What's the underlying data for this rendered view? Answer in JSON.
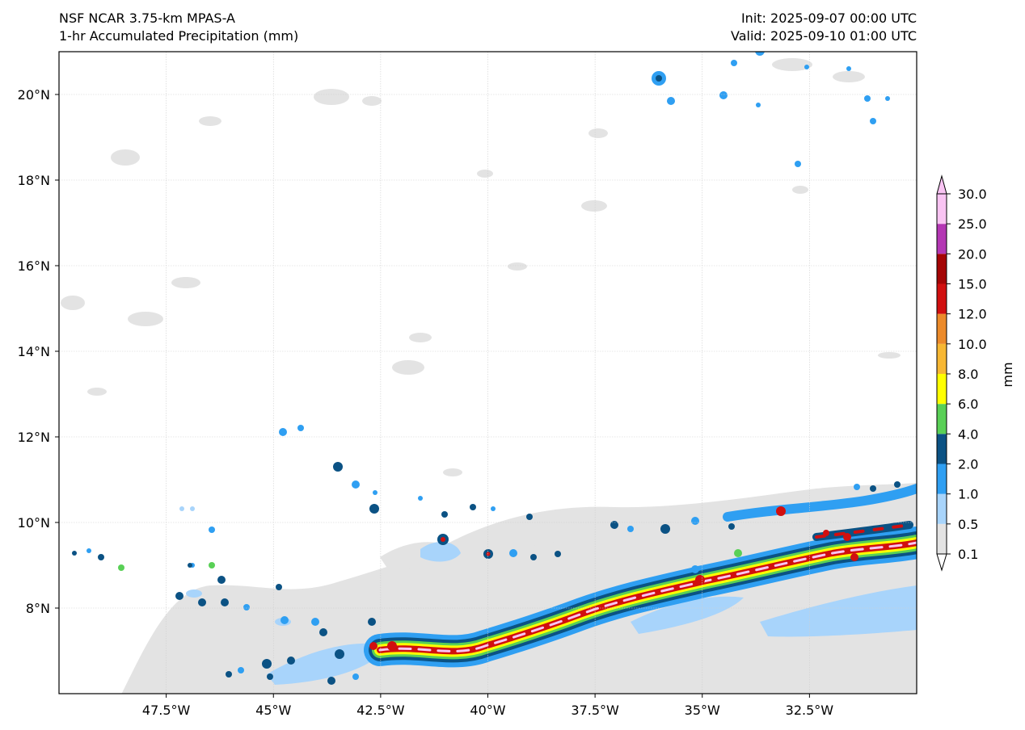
{
  "header": {
    "model": "NSF NCAR 3.75-km MPAS-A",
    "field": "1-hr Accumulated Precipitation (mm)",
    "init": "Init: 2025-09-07 00:00 UTC",
    "valid": "Valid: 2025-09-10 01:00 UTC"
  },
  "map": {
    "lon_range": [
      -50,
      -30
    ],
    "lat_range": [
      6,
      21
    ],
    "lat_ticks": [
      {
        "value": 20,
        "label": "20°N"
      },
      {
        "value": 18,
        "label": "18°N"
      },
      {
        "value": 16,
        "label": "16°N"
      },
      {
        "value": 14,
        "label": "14°N"
      },
      {
        "value": 12,
        "label": "12°N"
      },
      {
        "value": 10,
        "label": "10°N"
      },
      {
        "value": 8,
        "label": "8°N"
      }
    ],
    "lon_ticks": [
      {
        "value": -47.5,
        "label": "47.5°W"
      },
      {
        "value": -45,
        "label": "45°W"
      },
      {
        "value": -42.5,
        "label": "42.5°W"
      },
      {
        "value": -40,
        "label": "40°W"
      },
      {
        "value": -37.5,
        "label": "37.5°W"
      },
      {
        "value": -35,
        "label": "35°W"
      },
      {
        "value": -32.5,
        "label": "32.5°W"
      }
    ]
  },
  "colorbar": {
    "unit_label": "mm",
    "levels": [
      "0.1",
      "0.5",
      "1.0",
      "2.0",
      "4.0",
      "6.0",
      "8.0",
      "10.0",
      "12.0",
      "15.0",
      "20.0",
      "25.0",
      "30.0"
    ],
    "colors": [
      "#e3e3e3",
      "#a8d4fb",
      "#2f9ff2",
      "#0b5284",
      "#59d056",
      "#ffff00",
      "#f7b733",
      "#ec8a2a",
      "#d10f0f",
      "#a50505",
      "#b437b4",
      "#f9c4f3"
    ]
  }
}
